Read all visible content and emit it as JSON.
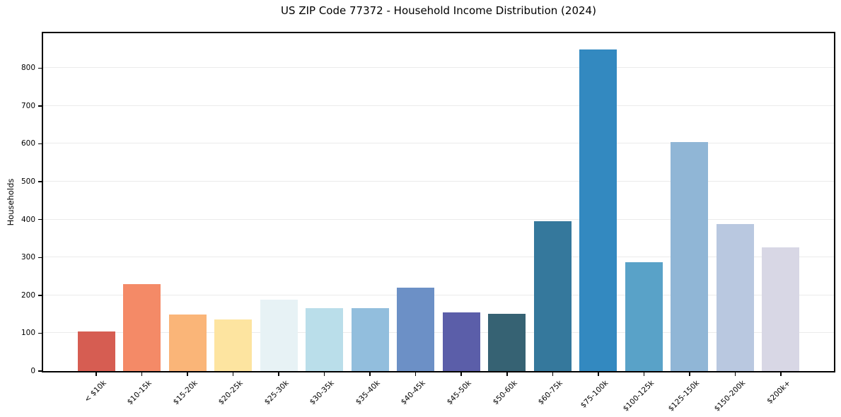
{
  "chart_data": {
    "type": "bar",
    "title": "US ZIP Code 77372 - Household Income Distribution (2024)",
    "xlabel": "",
    "ylabel": "Households",
    "categories": [
      "< $10k",
      "$10-15k",
      "$15-20k",
      "$20-25k",
      "$25-30k",
      "$30-35k",
      "$35-40k",
      "$40-45k",
      "$45-50k",
      "$50-60k",
      "$60-75k",
      "$75-100k",
      "$100-125k",
      "$125-150k",
      "$150-200k",
      "$200k+"
    ],
    "values": [
      105,
      229,
      149,
      136,
      188,
      167,
      166,
      220,
      154,
      152,
      395,
      849,
      288,
      605,
      389,
      327
    ],
    "bar_colors": [
      "#d65d52",
      "#f48a67",
      "#fab578",
      "#fde4a0",
      "#e7f2f5",
      "#badeea",
      "#92bedd",
      "#6c90c6",
      "#5b5ea9",
      "#366273",
      "#35789c",
      "#3389c0",
      "#59a2c8",
      "#90b6d6",
      "#b9c8e0",
      "#d8d7e5"
    ],
    "yticks": [
      0,
      100,
      200,
      300,
      400,
      500,
      600,
      700,
      800
    ],
    "ylim": [
      0,
      892
    ],
    "grid": "horizontal",
    "legend": "none",
    "background_color": "#ffffff",
    "axis_color": "#000000",
    "gridline_color": "#ebebeb"
  }
}
